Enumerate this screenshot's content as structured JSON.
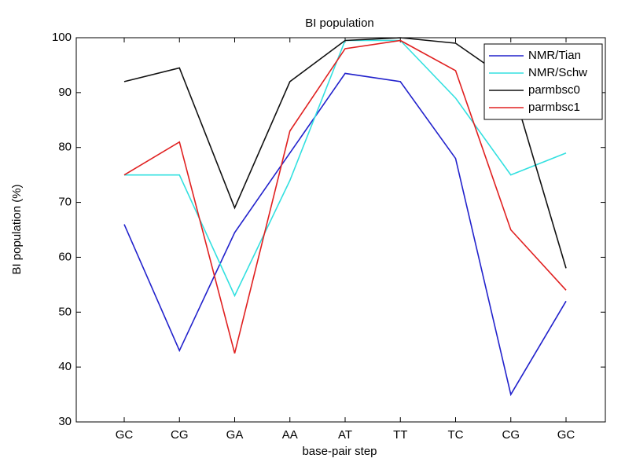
{
  "chart_data": {
    "type": "line",
    "title": "BI population",
    "x_label": "base-pair step",
    "y_label": "BI population (%)",
    "categories": [
      "GC",
      "CG",
      "GA",
      "AA",
      "AT",
      "TT",
      "TC",
      "CG",
      "GC"
    ],
    "series": [
      {
        "name": "NMR/Tian",
        "color": "#2222cc",
        "values": [
          66,
          43,
          64.5,
          79,
          93.5,
          92,
          78,
          35,
          52
        ]
      },
      {
        "name": "NMR/Schw",
        "color": "#33e0e0",
        "values": [
          75,
          75,
          53,
          74,
          99.5,
          99.5,
          89,
          75,
          79
        ]
      },
      {
        "name": "parmbsc0",
        "color": "#111111",
        "values": [
          92,
          94.5,
          69,
          92,
          99.5,
          100,
          99,
          92,
          58
        ]
      },
      {
        "name": "parmbsc1",
        "color": "#e02020",
        "values": [
          75,
          81,
          42.5,
          83,
          98,
          99.5,
          94,
          65,
          54
        ]
      }
    ],
    "ylim": [
      30,
      100
    ],
    "yticks": [
      30,
      40,
      50,
      60,
      70,
      80,
      90,
      100
    ],
    "grid": false,
    "legend": "upper right"
  }
}
